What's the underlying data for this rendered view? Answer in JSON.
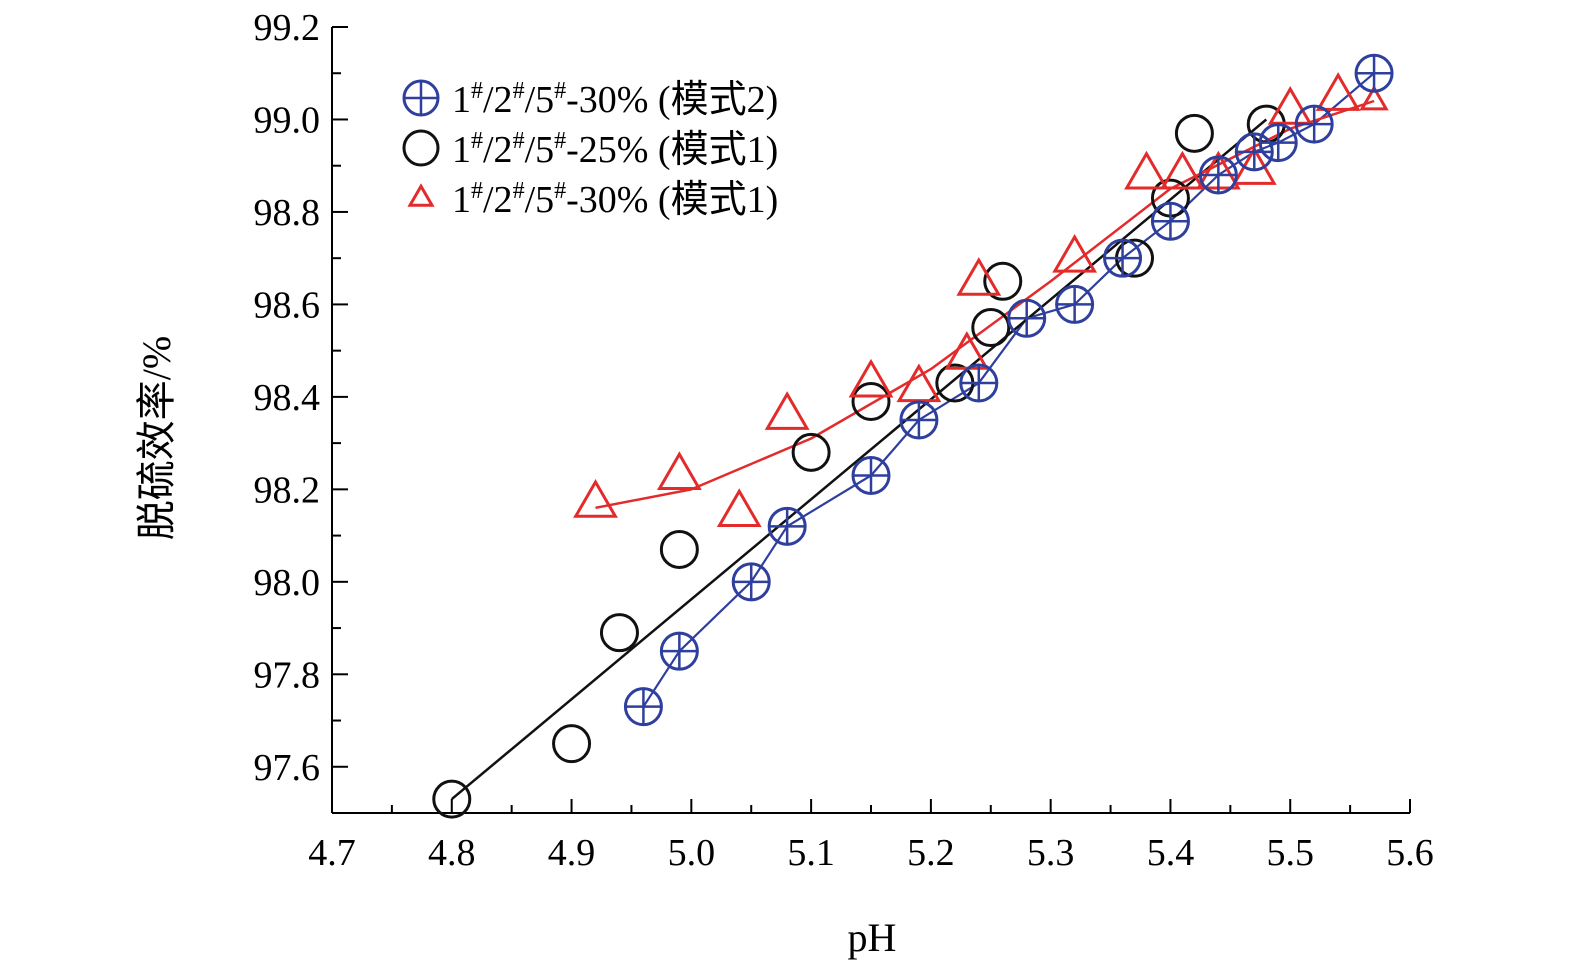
{
  "chart_data": {
    "type": "scatter",
    "title": "",
    "xlabel": "pH",
    "ylabel": "脱硫效率/%",
    "xlim": [
      4.7,
      5.6
    ],
    "ylim": [
      97.5,
      99.2
    ],
    "x_ticks": [
      "4.7",
      "4.8",
      "4.9",
      "5.0",
      "5.1",
      "5.2",
      "5.3",
      "5.4",
      "5.5",
      "5.6"
    ],
    "y_ticks": [
      "97.6",
      "97.8",
      "98.0",
      "98.2",
      "98.4",
      "98.6",
      "98.8",
      "99.0",
      "99.2"
    ],
    "grid": false,
    "legend_position": "top-left",
    "series": [
      {
        "name": "1#/2#/5#-30% (模式2)",
        "legend_parts": {
          "n1": "1",
          "n2": "/2",
          "n3": "/5",
          "suffix": "-30% (模式2)"
        },
        "marker": "circle-plus",
        "color": "#2e3f9e",
        "connected": true,
        "points": [
          [
            4.96,
            97.73
          ],
          [
            4.99,
            97.85
          ],
          [
            5.05,
            98.0
          ],
          [
            5.08,
            98.12
          ],
          [
            5.15,
            98.23
          ],
          [
            5.19,
            98.35
          ],
          [
            5.24,
            98.43
          ],
          [
            5.28,
            98.57
          ],
          [
            5.32,
            98.6
          ],
          [
            5.36,
            98.7
          ],
          [
            5.4,
            98.78
          ],
          [
            5.44,
            98.88
          ],
          [
            5.47,
            98.93
          ],
          [
            5.49,
            98.95
          ],
          [
            5.52,
            98.99
          ],
          [
            5.57,
            99.1
          ]
        ]
      },
      {
        "name": "1#/2#/5#-25% (模式1)",
        "legend_parts": {
          "n1": "1",
          "n2": "/2",
          "n3": "/5",
          "suffix": "-25% (模式1)"
        },
        "marker": "circle",
        "color": "#111111",
        "points": [
          [
            4.8,
            97.53
          ],
          [
            4.9,
            97.65
          ],
          [
            4.94,
            97.89
          ],
          [
            4.99,
            98.07
          ],
          [
            5.1,
            98.28
          ],
          [
            5.15,
            98.39
          ],
          [
            5.22,
            98.43
          ],
          [
            5.25,
            98.55
          ],
          [
            5.26,
            98.65
          ],
          [
            5.37,
            98.7
          ],
          [
            5.4,
            98.83
          ],
          [
            5.42,
            98.97
          ],
          [
            5.48,
            98.99
          ]
        ],
        "fit_line": [
          [
            4.8,
            97.53
          ],
          [
            5.48,
            99.0
          ]
        ]
      },
      {
        "name": "1#/2#/5#-30% (模式1)",
        "legend_parts": {
          "n1": "1",
          "n2": "/2",
          "n3": "/5",
          "suffix": "-30% (模式1)"
        },
        "marker": "triangle",
        "color": "#e32b2b",
        "points": [
          [
            4.92,
            98.17
          ],
          [
            4.99,
            98.23
          ],
          [
            5.04,
            98.15
          ],
          [
            5.08,
            98.36
          ],
          [
            5.15,
            98.43
          ],
          [
            5.19,
            98.42
          ],
          [
            5.23,
            98.49
          ],
          [
            5.24,
            98.65
          ],
          [
            5.32,
            98.7
          ],
          [
            5.38,
            98.88
          ],
          [
            5.41,
            98.88
          ],
          [
            5.44,
            98.88
          ],
          [
            5.47,
            98.89
          ],
          [
            5.5,
            99.02
          ],
          [
            5.54,
            99.05
          ],
          [
            5.57,
            99.04
          ]
        ],
        "fit_curve": [
          [
            4.92,
            98.16
          ],
          [
            5.0,
            98.2
          ],
          [
            5.1,
            98.31
          ],
          [
            5.2,
            98.46
          ],
          [
            5.3,
            98.65
          ],
          [
            5.4,
            98.85
          ],
          [
            5.5,
            98.98
          ],
          [
            5.57,
            99.04
          ]
        ]
      }
    ]
  }
}
